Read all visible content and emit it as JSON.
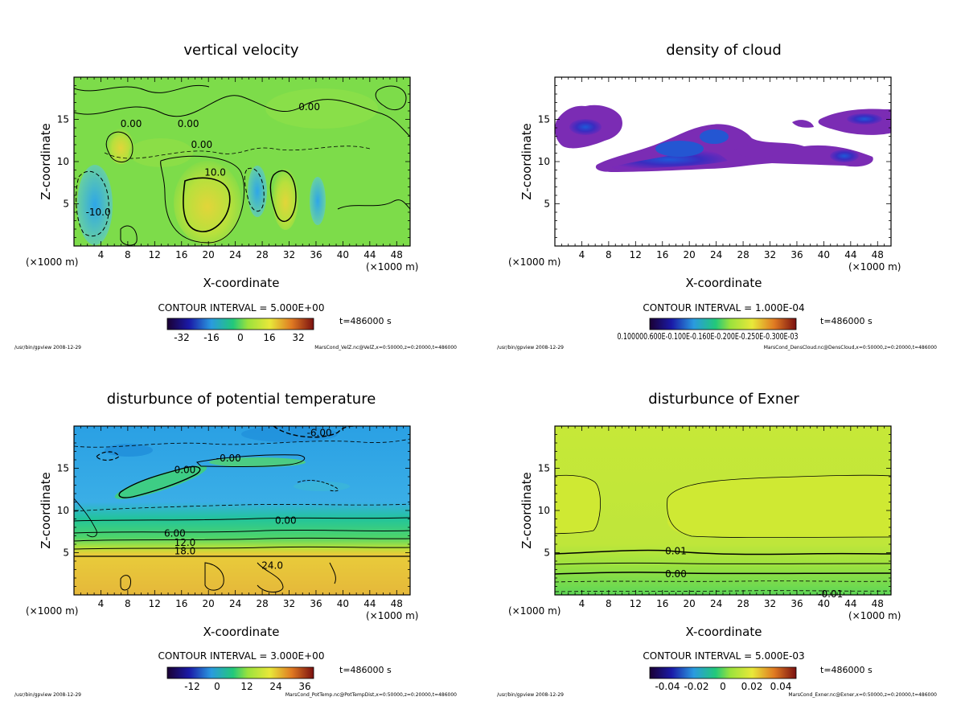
{
  "chart_data": [
    {
      "type": "heatmap",
      "title": "vertical velocity",
      "xlabel": "X-coordinate",
      "ylabel": "Z-coordinate",
      "xunit": "(×1000 m)",
      "xlim": [
        0,
        50
      ],
      "ylim": [
        0,
        20
      ],
      "xticks": [
        "4",
        "8",
        "12",
        "16",
        "20",
        "24",
        "28",
        "32",
        "36",
        "40",
        "44",
        "48"
      ],
      "yticks": [
        "5",
        "10",
        "15"
      ],
      "contour_interval": "CONTOUR INTERVAL = 5.000E+00",
      "colorbar_ticks": [
        "-32",
        "-16",
        "0",
        "16",
        "32"
      ],
      "time": "t=486000 s",
      "footer_left": "/usr/bin/gpview  2008-12-29",
      "footer_right": "MarsCond_VelZ.nc@VelZ,x=0:50000,z=0:20000,t=486000",
      "contour_labels": [
        {
          "text": "0.00",
          "x": 35,
          "z": 16.5
        },
        {
          "text": "0.00",
          "x": 17,
          "z": 14.5
        },
        {
          "text": "0.00",
          "x": 8.5,
          "z": 14.5
        },
        {
          "text": "0.00",
          "x": 19,
          "z": 12
        },
        {
          "text": "10.0",
          "x": 21,
          "z": 8.7
        },
        {
          "text": "-10.0",
          "x": 3.6,
          "z": 4
        }
      ]
    },
    {
      "type": "heatmap",
      "title": "density of cloud",
      "xlabel": "X-coordinate",
      "ylabel": "Z-coordinate",
      "xunit": "(×1000 m)",
      "xlim": [
        0,
        50
      ],
      "ylim": [
        0,
        20
      ],
      "xticks": [
        "4",
        "8",
        "12",
        "16",
        "20",
        "24",
        "28",
        "32",
        "36",
        "40",
        "44",
        "48"
      ],
      "yticks": [
        "5",
        "10",
        "15"
      ],
      "contour_interval": "CONTOUR INTERVAL = 1.000E-04",
      "colorbar_label": "0.100000.600E-0.100E-0.160E-0.200E-0.250E-0.300E-03",
      "time": "t=486000 s",
      "footer_left": "/usr/bin/gpview  2008-12-29",
      "footer_right": "MarsCond_DensCloud.nc@DensCloud,x=0:50000,z=0:20000,t=486000"
    },
    {
      "type": "heatmap",
      "title": "disturbunce of potential temperature",
      "xlabel": "X-coordinate",
      "ylabel": "Z-coordinate",
      "xunit": "(×1000 m)",
      "xlim": [
        0,
        50
      ],
      "ylim": [
        0,
        20
      ],
      "xticks": [
        "4",
        "8",
        "12",
        "16",
        "20",
        "24",
        "28",
        "32",
        "36",
        "40",
        "44",
        "48"
      ],
      "yticks": [
        "5",
        "10",
        "15"
      ],
      "contour_interval": "CONTOUR INTERVAL = 3.000E+00",
      "colorbar_ticks": [
        "-12",
        "0",
        "12",
        "24",
        "36"
      ],
      "time": "t=486000 s",
      "footer_left": "/usr/bin/gpview  2008-12-29",
      "footer_right": "MarsCond_PotTemp.nc@PotTempDist,x=0:50000,z=0:20000,t=486000",
      "contour_labels": [
        {
          "text": "-6.00",
          "x": 36.5,
          "z": 19.2
        },
        {
          "text": "-0.00",
          "x": 23,
          "z": 16.2
        },
        {
          "text": "0.00",
          "x": 16.5,
          "z": 14.8
        },
        {
          "text": "0.00",
          "x": 31.5,
          "z": 8.8
        },
        {
          "text": "6.00",
          "x": 15,
          "z": 7.3
        },
        {
          "text": "12.0",
          "x": 16.5,
          "z": 6.2
        },
        {
          "text": "18.0",
          "x": 16.5,
          "z": 5.2
        },
        {
          "text": "24.0",
          "x": 29.5,
          "z": 3.5
        }
      ]
    },
    {
      "type": "heatmap",
      "title": "disturbunce of Exner",
      "xlabel": "X-coordinate",
      "ylabel": "Z-coordinate",
      "xunit": "(×1000 m)",
      "xlim": [
        0,
        50
      ],
      "ylim": [
        0,
        20
      ],
      "xticks": [
        "4",
        "8",
        "12",
        "16",
        "20",
        "24",
        "28",
        "32",
        "36",
        "40",
        "44",
        "48"
      ],
      "yticks": [
        "5",
        "10",
        "15"
      ],
      "contour_interval": "CONTOUR INTERVAL = 5.000E-03",
      "colorbar_ticks": [
        "-0.04",
        "-0.02",
        "0",
        "0.02",
        "0.04"
      ],
      "time": "t=486000 s",
      "footer_left": "/usr/bin/gpview  2008-12-29",
      "footer_right": "MarsCond_Exner.nc@Exner,x=0:50000,z=0:20000,t=486000",
      "contour_labels": [
        {
          "text": "0.01",
          "x": 18,
          "z": 5.2
        },
        {
          "text": "0.00",
          "x": 18,
          "z": 2.5
        },
        {
          "text": "-0.01",
          "x": 41,
          "z": 0.1
        }
      ]
    }
  ]
}
